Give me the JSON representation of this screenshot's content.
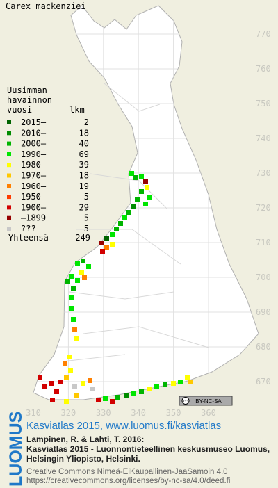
{
  "title": "Carex mackenziei",
  "legend": {
    "heading": [
      "Uusimman",
      "havainnon",
      "vuosi"
    ],
    "count_heading": "lkm",
    "rows": [
      {
        "label": "2015–",
        "count": 2,
        "color": "#006400"
      },
      {
        "label": "2010–",
        "count": 18,
        "color": "#008c00"
      },
      {
        "label": "2000–",
        "count": 40,
        "color": "#00b400"
      },
      {
        "label": "1990–",
        "count": 69,
        "color": "#00e600"
      },
      {
        "label": "1980–",
        "count": 39,
        "color": "#ffff00"
      },
      {
        "label": "1970–",
        "count": 18,
        "color": "#ffc800"
      },
      {
        "label": "1960–",
        "count": 19,
        "color": "#ff8000"
      },
      {
        "label": "1950–",
        "count": 5,
        "color": "#ff3c00"
      },
      {
        "label": "1900–",
        "count": 29,
        "color": "#d20000"
      },
      {
        "label": "–1899",
        "count": 5,
        "color": "#960000"
      },
      {
        "label": "???",
        "count": 5,
        "color": "#c8c8c8"
      }
    ],
    "total_label": "Yhteensä",
    "total": 249
  },
  "grid": {
    "y_ticks": [
      770,
      760,
      750,
      740,
      730,
      720,
      710,
      700,
      690,
      680,
      670
    ],
    "x_ticks": [
      310,
      320,
      330,
      340,
      350,
      360
    ]
  },
  "license_badge": "BY-NC-SA",
  "footer": {
    "brand": "LUOMUS",
    "link": "Kasviatlas 2015, www.luomus.fi/kasviatlas",
    "citation": [
      "Lampinen, R. & Lahti, T. 2016:",
      "Kasviatlas 2015 - Luonnontieteellinen keskusmuseo Luomus,",
      "Helsingin Yliopisto, Helsinki."
    ],
    "license": [
      "Creative Commons Nimeä-EiKaupallinen-JaaSamoin 4.0",
      "https://creativecommons.org/licenses/by-nc-sa/4.0/deed.fi"
    ]
  }
}
